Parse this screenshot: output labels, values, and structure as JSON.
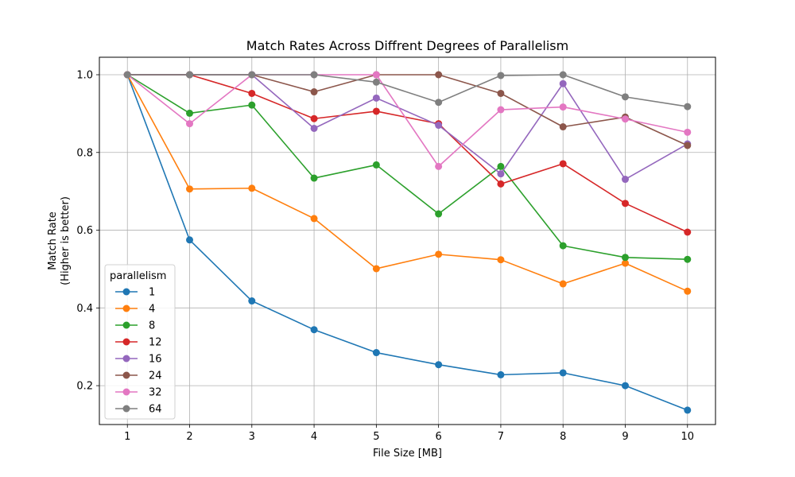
{
  "chart_data": {
    "type": "line",
    "title": "Match Rates Across Diffrent Degrees of Parallelism",
    "xlabel": "File Size [MB]",
    "ylabel_lines": [
      "Match Rate",
      "(Higher is better)"
    ],
    "x": [
      1,
      2,
      3,
      4,
      5,
      6,
      7,
      8,
      9,
      10
    ],
    "x_ticks": [
      "1",
      "2",
      "3",
      "4",
      "5",
      "6",
      "7",
      "8",
      "9",
      "10"
    ],
    "y_ticks": [
      "0.2",
      "0.4",
      "0.6",
      "0.8",
      "1.0"
    ],
    "xlim": [
      0.55,
      10.45
    ],
    "ylim": [
      0.1,
      1.045
    ],
    "grid": true,
    "legend_title": "parallelism",
    "legend_position": "lower-left",
    "series": [
      {
        "name": "1",
        "color": "#1f77b4",
        "values": [
          1.0,
          0.575,
          0.418,
          0.344,
          0.285,
          0.254,
          0.228,
          0.233,
          0.2,
          0.137
        ]
      },
      {
        "name": "4",
        "color": "#ff7f0e",
        "values": [
          1.0,
          0.706,
          0.708,
          0.63,
          0.501,
          0.538,
          0.524,
          0.462,
          0.515,
          0.443
        ]
      },
      {
        "name": "8",
        "color": "#2ca02c",
        "values": [
          1.0,
          0.901,
          0.922,
          0.734,
          0.768,
          0.642,
          0.764,
          0.56,
          0.53,
          0.525
        ]
      },
      {
        "name": "12",
        "color": "#d62728",
        "values": [
          1.0,
          1.0,
          0.952,
          0.887,
          0.906,
          0.874,
          0.719,
          0.771,
          0.669,
          0.595
        ]
      },
      {
        "name": "16",
        "color": "#9467bd",
        "values": [
          1.0,
          1.0,
          1.0,
          0.862,
          0.94,
          0.87,
          0.745,
          0.977,
          0.731,
          0.822
        ]
      },
      {
        "name": "24",
        "color": "#8c564b",
        "values": [
          1.0,
          1.0,
          1.0,
          0.956,
          1.0,
          1.0,
          0.952,
          0.866,
          0.891,
          0.818
        ]
      },
      {
        "name": "32",
        "color": "#e377c2",
        "values": [
          1.0,
          0.874,
          1.0,
          1.0,
          1.0,
          0.764,
          0.91,
          0.917,
          0.886,
          0.852
        ]
      },
      {
        "name": "64",
        "color": "#7f7f7f",
        "values": [
          1.0,
          1.0,
          1.0,
          1.0,
          0.981,
          0.929,
          0.998,
          1.0,
          0.943,
          0.918
        ]
      }
    ]
  }
}
